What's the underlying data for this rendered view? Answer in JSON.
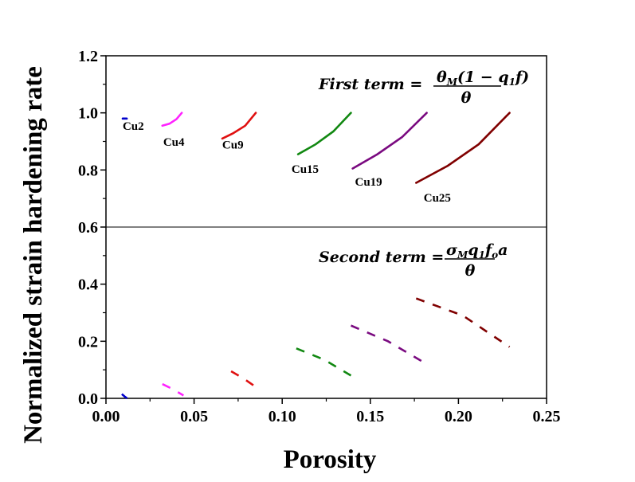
{
  "chart_data": {
    "type": "line",
    "xlabel": "Porosity",
    "ylabel": "Normalized strain hardening rate",
    "xlim": [
      0.0,
      0.25
    ],
    "ylim": [
      0.0,
      1.2
    ],
    "xticks": [
      "0.00",
      "0.05",
      "0.10",
      "0.15",
      "0.20",
      "0.25"
    ],
    "yticks": [
      "0.0",
      "0.2",
      "0.4",
      "0.6",
      "0.8",
      "1.0",
      "1.2"
    ],
    "grid": false,
    "reference_line_y": 0.6,
    "annotations": {
      "first_term": {
        "label": "First term =",
        "numerator": [
          "θ",
          "M",
          "(1 − q",
          "1",
          "f)"
        ],
        "denominator": "θ"
      },
      "second_term": {
        "label": "Second term =",
        "numerator": [
          "σ",
          "M",
          "q",
          "1",
          "f",
          "o",
          "a"
        ],
        "denominator": "θ"
      }
    },
    "series": [
      {
        "name": "Cu2",
        "color": "#0000cc",
        "first": [
          [
            0.0095,
            0.98
          ],
          [
            0.0118,
            0.98
          ]
        ],
        "second": [
          [
            0.009,
            0.015
          ],
          [
            0.0105,
            0.007
          ],
          [
            0.012,
            0.0
          ]
        ]
      },
      {
        "name": "Cu4",
        "color": "#ff22ff",
        "first": [
          [
            0.032,
            0.955
          ],
          [
            0.036,
            0.962
          ],
          [
            0.04,
            0.978
          ],
          [
            0.043,
            1.0
          ]
        ],
        "second": [
          [
            0.032,
            0.05
          ],
          [
            0.038,
            0.032
          ],
          [
            0.044,
            0.01
          ]
        ]
      },
      {
        "name": "Cu9",
        "color": "#e01010",
        "first": [
          [
            0.066,
            0.91
          ],
          [
            0.072,
            0.928
          ],
          [
            0.079,
            0.955
          ],
          [
            0.085,
            1.0
          ]
        ],
        "second": [
          [
            0.071,
            0.095
          ],
          [
            0.078,
            0.07
          ],
          [
            0.085,
            0.04
          ]
        ]
      },
      {
        "name": "Cu15",
        "color": "#118811",
        "first": [
          [
            0.109,
            0.855
          ],
          [
            0.119,
            0.89
          ],
          [
            0.129,
            0.935
          ],
          [
            0.139,
            1.0
          ]
        ],
        "second": [
          [
            0.108,
            0.175
          ],
          [
            0.124,
            0.135
          ],
          [
            0.139,
            0.08
          ]
        ]
      },
      {
        "name": "Cu19",
        "color": "#7a0a80",
        "first": [
          [
            0.14,
            0.805
          ],
          [
            0.154,
            0.855
          ],
          [
            0.168,
            0.915
          ],
          [
            0.182,
            1.0
          ]
        ],
        "second": [
          [
            0.139,
            0.255
          ],
          [
            0.16,
            0.2
          ],
          [
            0.182,
            0.12
          ]
        ]
      },
      {
        "name": "Cu25",
        "color": "#800000",
        "first": [
          [
            0.176,
            0.755
          ],
          [
            0.194,
            0.815
          ],
          [
            0.2115,
            0.89
          ],
          [
            0.229,
            1.0
          ]
        ],
        "second": [
          [
            0.176,
            0.35
          ],
          [
            0.2025,
            0.29
          ],
          [
            0.229,
            0.18
          ]
        ]
      }
    ]
  }
}
